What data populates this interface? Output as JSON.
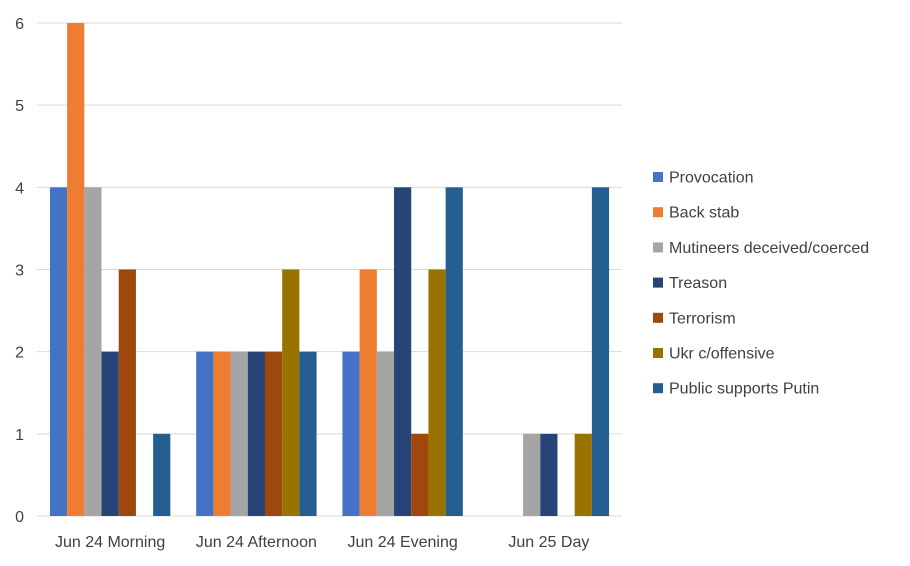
{
  "chart_data": {
    "type": "bar",
    "title": "",
    "xlabel": "",
    "ylabel": "",
    "ylim": [
      0,
      6
    ],
    "yticks": [
      0,
      1,
      2,
      3,
      4,
      5,
      6
    ],
    "grid": true,
    "legend_position": "right",
    "categories": [
      "Jun 24 Morning",
      "Jun 24 Afternoon",
      "Jun 24 Evening",
      "Jun 25 Day"
    ],
    "series": [
      {
        "name": "Provocation",
        "color": "#4472C4",
        "values": [
          4,
          2,
          2,
          null
        ]
      },
      {
        "name": "Back stab",
        "color": "#ED7D31",
        "values": [
          6,
          2,
          3,
          null
        ]
      },
      {
        "name": "Mutineers deceived/coerced",
        "color": "#A5A5A5",
        "values": [
          4,
          2,
          2,
          1
        ]
      },
      {
        "name": "Treason",
        "color": "#264478",
        "values": [
          2,
          2,
          4,
          1
        ]
      },
      {
        "name": "Terrorism",
        "color": "#9E480E",
        "values": [
          3,
          2,
          1,
          null
        ]
      },
      {
        "name": "Ukr c/offensive",
        "color": "#997300",
        "values": [
          null,
          3,
          3,
          1
        ]
      },
      {
        "name": "Public supports Putin",
        "color": "#255E91",
        "values": [
          1,
          2,
          4,
          4
        ]
      }
    ]
  }
}
